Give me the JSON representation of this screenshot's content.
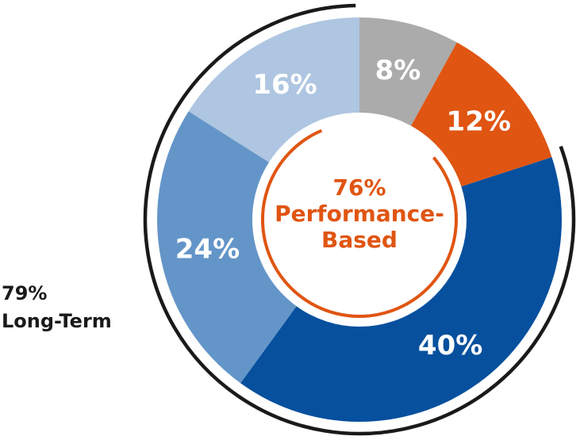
{
  "chart_data": {
    "type": "pie",
    "style": "donut",
    "slices": [
      {
        "value": 8,
        "label": "8%",
        "color": "#ababab"
      },
      {
        "value": 12,
        "label": "12%",
        "color": "#e05512"
      },
      {
        "value": 40,
        "label": "40%",
        "color": "#06509e"
      },
      {
        "value": 24,
        "label": "24%",
        "color": "#6495c8"
      },
      {
        "value": 16,
        "label": "16%",
        "color": "#aec6e1"
      }
    ],
    "center_annotation": {
      "lines": [
        "76%",
        "Performance-",
        "Based"
      ],
      "color": "#e05512"
    },
    "outer_annotation": {
      "lines": [
        "79%",
        "Long-Term"
      ],
      "color": "#1a1a1a"
    }
  }
}
